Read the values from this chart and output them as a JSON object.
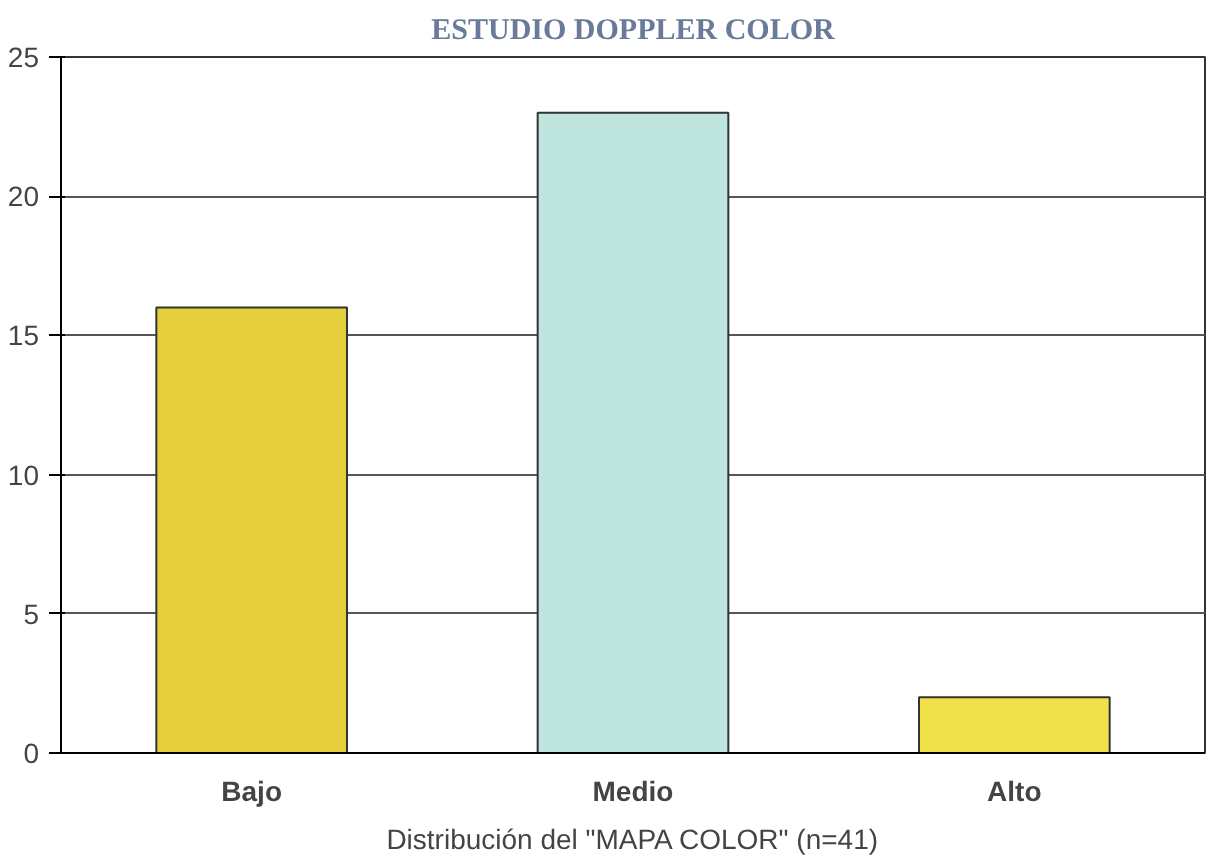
{
  "chart_data": {
    "type": "bar",
    "title": "ESTUDIO DOPPLER COLOR",
    "xlabel": "Distribución del \"MAPA COLOR\" (n=41)",
    "categories": [
      "Bajo",
      "Medio",
      "Alto"
    ],
    "values": [
      16,
      23,
      2
    ],
    "colors": [
      "#e6cf3c",
      "#bfe6de",
      "#f0e04a"
    ],
    "ylim": [
      0,
      25
    ],
    "yticks": [
      0,
      5,
      10,
      15,
      20,
      25
    ],
    "grid": "y"
  }
}
